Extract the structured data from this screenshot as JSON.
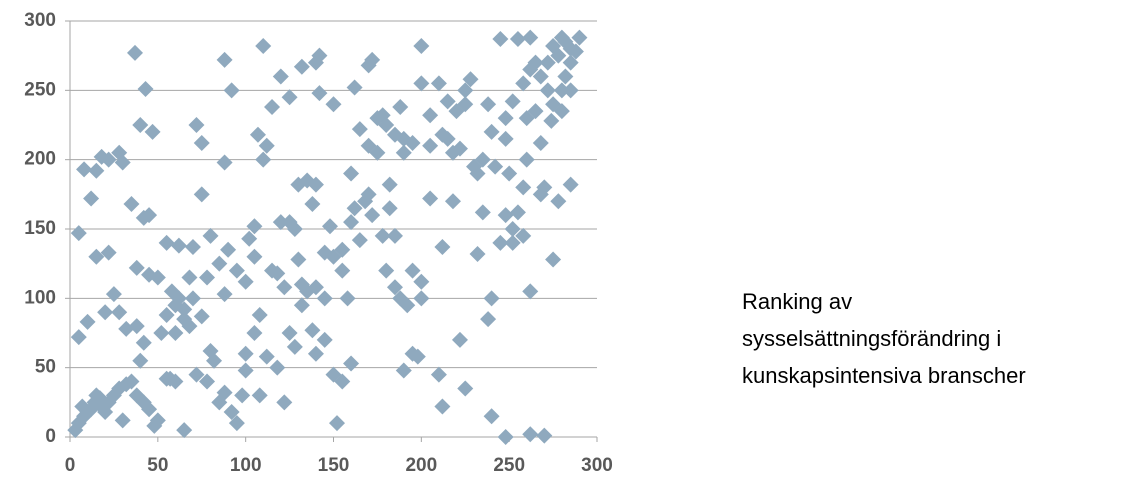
{
  "chart_data": {
    "type": "scatter",
    "annotation": [
      "Ranking av",
      "sysselsättningsförändring i",
      "kunskapsintensiva branscher"
    ],
    "color": "#8fa9be",
    "grid": true,
    "xlim": [
      0,
      300
    ],
    "xticks": [
      0,
      50,
      100,
      150,
      200,
      250,
      300
    ],
    "ylim": [
      0,
      300
    ],
    "yticks": [
      0,
      50,
      100,
      150,
      200,
      250,
      300
    ],
    "x": [
      3,
      5,
      7,
      8,
      10,
      12,
      14,
      15,
      17,
      18,
      20,
      22,
      25,
      28,
      30,
      32,
      35,
      5,
      8,
      12,
      15,
      18,
      22,
      28,
      30,
      35,
      37,
      40,
      43,
      47,
      45,
      42,
      38,
      10,
      5,
      15,
      22,
      20,
      25,
      28,
      32,
      38,
      42,
      40,
      45,
      50,
      55,
      60,
      62,
      65,
      70,
      68,
      75,
      75,
      72,
      80,
      85,
      88,
      88,
      92,
      88,
      90,
      95,
      100,
      102,
      105,
      107,
      110,
      110,
      112,
      115,
      118,
      120,
      122,
      125,
      125,
      130,
      132,
      135,
      140,
      142,
      142,
      138,
      140,
      145,
      148,
      150,
      155,
      160,
      162,
      165,
      170,
      172,
      175,
      178,
      182,
      185,
      188,
      190,
      195,
      200,
      200,
      205,
      210,
      212,
      215,
      218,
      222,
      225,
      228,
      232,
      235,
      238,
      242,
      245,
      248,
      252,
      255,
      258,
      260,
      262,
      265,
      268,
      270,
      272,
      275,
      278,
      280,
      282,
      285,
      288,
      290,
      285,
      278,
      275,
      262,
      258,
      252,
      255,
      250,
      248,
      240,
      238,
      232,
      225,
      222,
      218,
      212,
      210,
      205,
      200,
      195,
      192,
      188,
      185,
      180,
      178,
      172,
      165,
      160,
      155,
      152,
      150,
      145,
      140,
      138,
      132,
      128,
      125,
      122,
      118,
      112,
      108,
      105,
      100,
      98,
      95,
      92,
      88,
      85,
      82,
      80,
      78,
      72,
      68,
      65,
      60,
      58,
      55,
      52,
      50,
      48,
      45,
      42,
      38,
      62,
      65,
      70,
      75,
      78,
      55,
      60,
      57,
      100,
      105,
      108,
      115,
      120,
      128,
      130,
      132,
      135,
      140,
      145,
      150,
      155,
      160,
      162,
      168,
      170,
      175,
      180,
      185,
      190,
      195,
      200,
      205,
      215,
      220,
      225,
      230,
      235,
      240,
      245,
      248,
      252,
      258,
      262,
      265,
      268,
      272,
      275,
      280,
      282,
      285,
      248,
      262,
      270,
      240,
      212,
      285,
      280,
      274,
      268,
      260,
      170,
      158,
      182,
      190,
      198
    ],
    "values": [
      5,
      10,
      22,
      15,
      18,
      20,
      25,
      30,
      28,
      22,
      18,
      25,
      30,
      35,
      12,
      38,
      40,
      147,
      193,
      172,
      192,
      202,
      200,
      205,
      198,
      168,
      277,
      225,
      251,
      220,
      160,
      158,
      122,
      83,
      72,
      130,
      133,
      90,
      103,
      90,
      78,
      80,
      68,
      55,
      117,
      115,
      42,
      40,
      138,
      5,
      137,
      115,
      175,
      212,
      225,
      145,
      125,
      272,
      198,
      250,
      103,
      135,
      120,
      112,
      143,
      152,
      218,
      282,
      200,
      210,
      238,
      118,
      260,
      108,
      245,
      155,
      182,
      267,
      185,
      270,
      275,
      248,
      168,
      182,
      133,
      152,
      240,
      120,
      190,
      252,
      222,
      268,
      272,
      205,
      232,
      182,
      145,
      238,
      215,
      212,
      282,
      255,
      232,
      255,
      218,
      242,
      205,
      208,
      240,
      258,
      190,
      162,
      240,
      195,
      287,
      215,
      242,
      287,
      255,
      200,
      288,
      235,
      212,
      180,
      270,
      282,
      275,
      250,
      285,
      270,
      278,
      288,
      182,
      170,
      128,
      105,
      145,
      140,
      162,
      190,
      230,
      100,
      85,
      132,
      35,
      70,
      170,
      137,
      45,
      172,
      112,
      60,
      95,
      100,
      108,
      120,
      145,
      160,
      142,
      53,
      40,
      10,
      45,
      70,
      60,
      77,
      95,
      65,
      75,
      25,
      50,
      58,
      30,
      75,
      60,
      30,
      10,
      18,
      32,
      25,
      55,
      62,
      40,
      45,
      80,
      85,
      95,
      105,
      88,
      75,
      12,
      8,
      20,
      25,
      30,
      100,
      92,
      100,
      87,
      115,
      140,
      75,
      42,
      48,
      130,
      88,
      120,
      155,
      150,
      128,
      110,
      105,
      108,
      100,
      130,
      135,
      155,
      165,
      170,
      175,
      230,
      225,
      218,
      205,
      120,
      100,
      210,
      215,
      235,
      250,
      195,
      200,
      220,
      140,
      160,
      150,
      180,
      265,
      270,
      260,
      250,
      240,
      235,
      260,
      250,
      0,
      2,
      1,
      15,
      22,
      280,
      288,
      228,
      175,
      230,
      210,
      100,
      165,
      48,
      58
    ]
  }
}
